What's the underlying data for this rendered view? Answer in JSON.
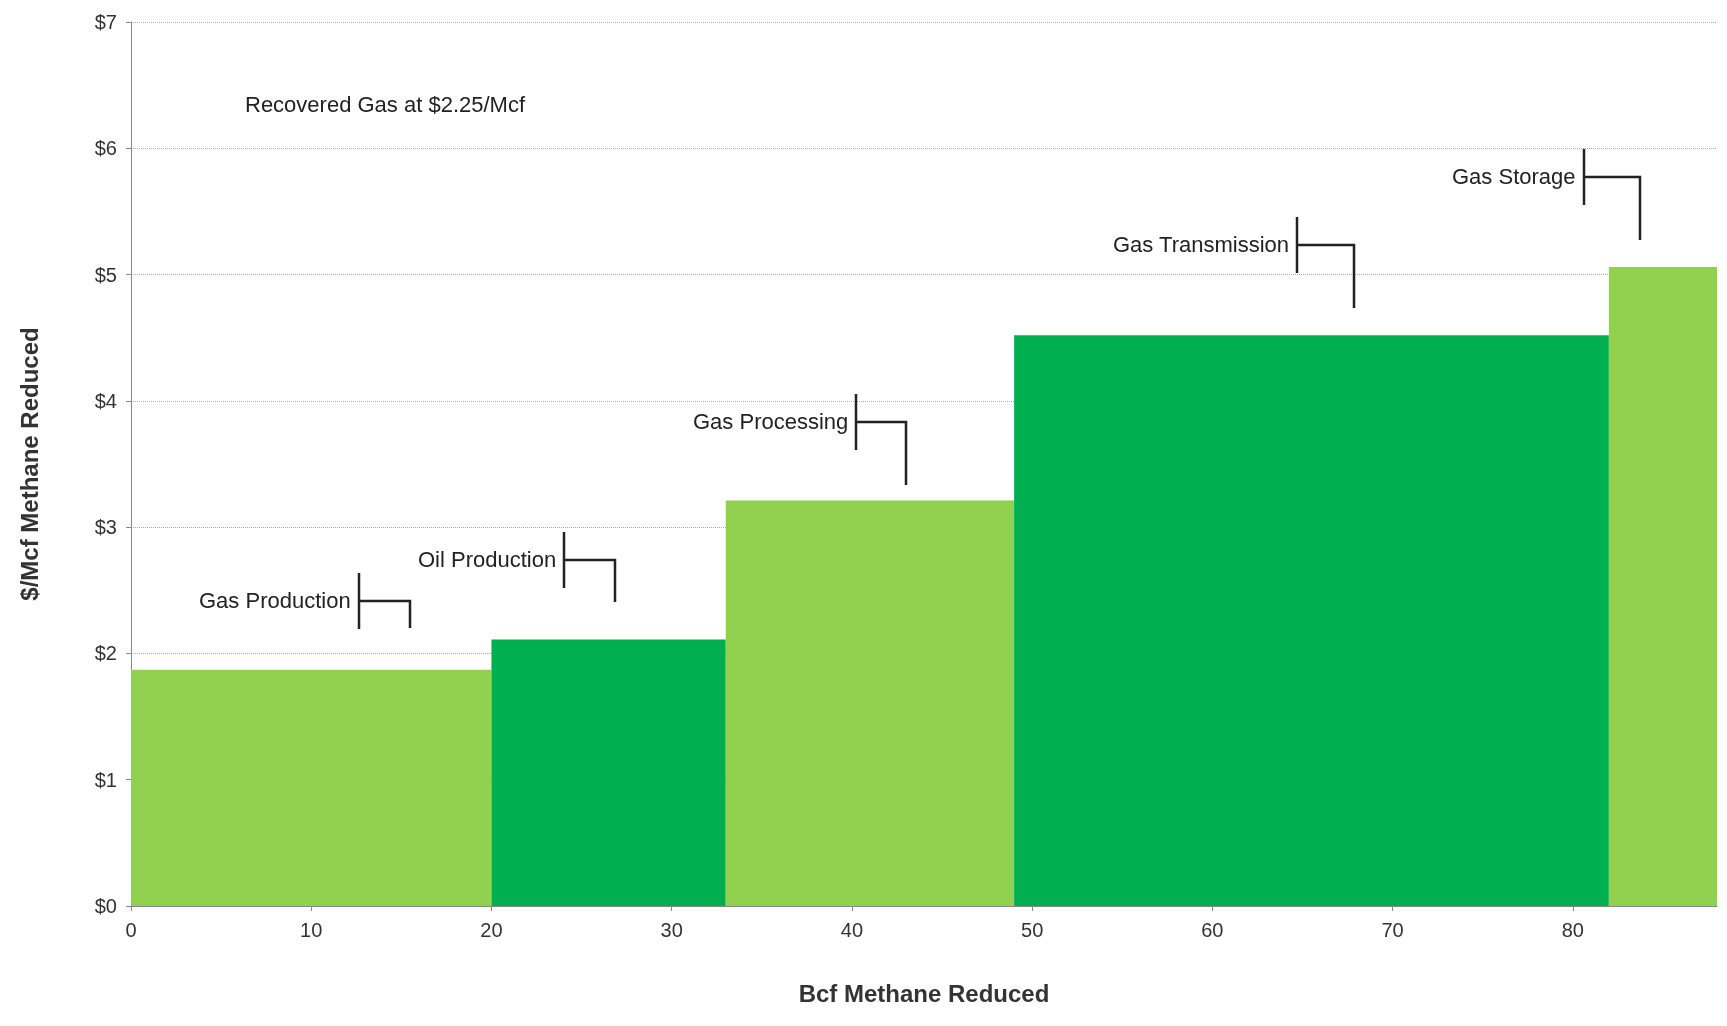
{
  "chart_data": {
    "type": "histogram",
    "xlabel": "Bcf Methane Reduced",
    "ylabel": "$/Mcf Methane Reduced",
    "bins": [
      0,
      20,
      33,
      49,
      82,
      88
    ],
    "values": [
      1.87,
      2.11,
      3.21,
      4.52,
      5.06
    ],
    "colors": [
      "#92d050",
      "#00b050",
      "#92d050",
      "#00b050",
      "#92d050"
    ],
    "xlim": [
      0,
      88
    ],
    "xticks": [
      0,
      10,
      20,
      30,
      40,
      50,
      60,
      70,
      80
    ],
    "ylim": [
      0,
      7
    ],
    "yticks": [
      {
        "value": 0,
        "label": "$0"
      },
      {
        "value": 1,
        "label": "$1"
      },
      {
        "value": 2,
        "label": "$2"
      },
      {
        "value": 3,
        "label": "$3"
      },
      {
        "value": 4,
        "label": "$4"
      },
      {
        "value": 5,
        "label": "$5"
      },
      {
        "value": 6,
        "label": "$6"
      },
      {
        "value": 7,
        "label": "$7"
      }
    ],
    "grid": "y",
    "annotations": [
      "Recovered Gas at $2.25/Mcf",
      "Gas Production",
      "Oil Production",
      "Gas Processing",
      "Gas Transmission",
      "Gas Storage"
    ]
  }
}
